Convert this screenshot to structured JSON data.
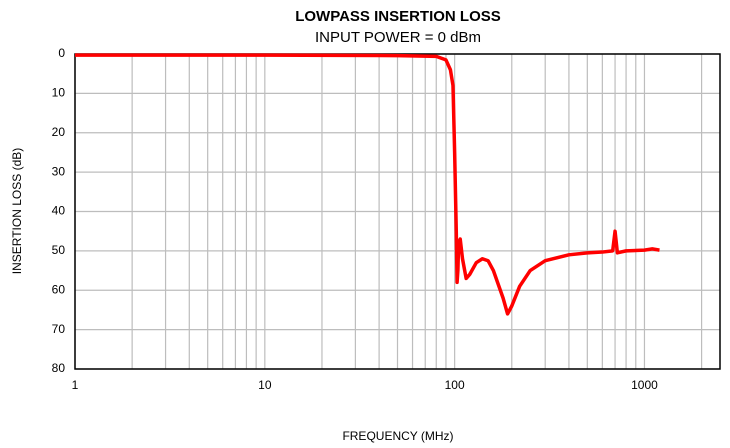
{
  "chart_data": {
    "type": "line",
    "title": "LOWPASS INSERTION LOSS",
    "subtitle": "INPUT POWER = 0 dBm",
    "x_label": "FREQUENCY (MHz)",
    "y_label": "INSERTION LOSS (dB)",
    "x": [
      1,
      10,
      50,
      80,
      90,
      95,
      98,
      100,
      102,
      103,
      104,
      105,
      107,
      110,
      115,
      120,
      130,
      140,
      150,
      160,
      180,
      190,
      200,
      220,
      250,
      300,
      400,
      500,
      600,
      680,
      700,
      720,
      800,
      1000,
      1100,
      1200
    ],
    "values": [
      0.3,
      0.3,
      0.4,
      0.6,
      1.5,
      4,
      8,
      25,
      45,
      58,
      55,
      48,
      47,
      52,
      57,
      56,
      53,
      52,
      52.5,
      55,
      62,
      66,
      64,
      59,
      55,
      52.5,
      51,
      50.5,
      50.3,
      50,
      45,
      50.5,
      50,
      49.8,
      49.5,
      49.8
    ],
    "color": "#ff0000",
    "x_log": true,
    "y_inverted": true,
    "xlim": [
      1,
      2500
    ],
    "xticks": [
      1,
      10,
      100,
      1000
    ],
    "x_minor_grid": [
      2,
      3,
      4,
      5,
      6,
      7,
      8,
      9,
      20,
      30,
      40,
      50,
      60,
      70,
      80,
      90,
      200,
      300,
      400,
      500,
      600,
      700,
      800,
      900,
      2000
    ],
    "ylim": [
      0,
      80
    ],
    "yticks": [
      0,
      10,
      20,
      30,
      40,
      50,
      60,
      70,
      80
    ],
    "grid": true
  }
}
